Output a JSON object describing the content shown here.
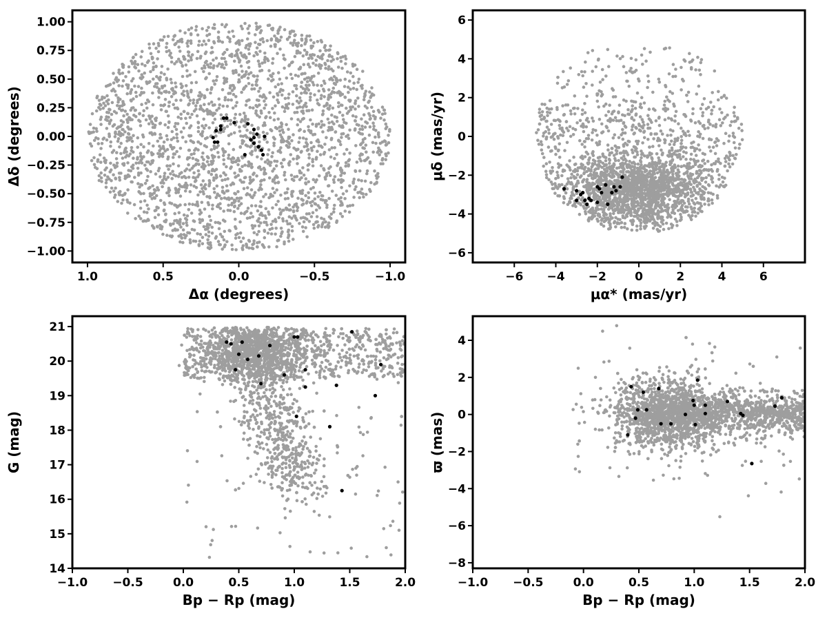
{
  "colors": {
    "field": "#9e9e9e",
    "members": "#000000",
    "axes": "#000000"
  },
  "chart_data": [
    {
      "type": "scatter",
      "xlabel": "Δα (degrees)",
      "ylabel": "Δδ (degrees)",
      "xlim": [
        1.1,
        -1.1
      ],
      "ylim": [
        -1.1,
        1.1
      ],
      "xticks": [
        1.0,
        0.5,
        0.0,
        -0.5,
        -1.0
      ],
      "xtick_labels": [
        "1.0",
        "0.5",
        "0.0",
        "−0.5",
        "−1.0"
      ],
      "yticks": [
        1.0,
        0.75,
        0.5,
        0.25,
        0.0,
        -0.25,
        -0.5,
        -0.75,
        -1.0
      ],
      "ytick_labels": [
        "1.00",
        "0.75",
        "0.50",
        "0.25",
        "0.00",
        "−0.25",
        "−0.50",
        "−0.75",
        "−1.00"
      ],
      "grid": false,
      "series": [
        {
          "role": "field",
          "color": "#9e9e9e",
          "approx_count": 2500,
          "distribution": {
            "shape": "disk",
            "center": [
              0,
              0
            ],
            "radius": 1.0
          }
        },
        {
          "role": "members",
          "color": "#000000",
          "points": [
            [
              0.15,
              0.05
            ],
            [
              0.17,
              -0.01
            ],
            [
              0.16,
              -0.05
            ],
            [
              0.14,
              -0.05
            ],
            [
              0.12,
              0.06
            ],
            [
              0.12,
              0.09
            ],
            [
              0.1,
              0.16
            ],
            [
              0.08,
              0.16
            ],
            [
              0.03,
              0.12
            ],
            [
              -0.06,
              0.11
            ],
            [
              -0.1,
              0.06
            ],
            [
              -0.12,
              0.02
            ],
            [
              -0.1,
              -0.01
            ],
            [
              -0.08,
              -0.03
            ],
            [
              -0.1,
              -0.06
            ],
            [
              -0.13,
              -0.09
            ],
            [
              -0.15,
              -0.12
            ],
            [
              -0.16,
              -0.16
            ],
            [
              -0.17,
              0.0
            ],
            [
              -0.04,
              -0.16
            ]
          ]
        }
      ]
    },
    {
      "type": "scatter",
      "xlabel": "μα* (mas/yr)",
      "ylabel": "μδ (mas/yr)",
      "xlim": [
        -8,
        8
      ],
      "ylim": [
        -6.5,
        6.5
      ],
      "xticks": [
        -6,
        -4,
        -2,
        0,
        2,
        4,
        6
      ],
      "xtick_labels": [
        "−6",
        "−4",
        "−2",
        "0",
        "2",
        "4",
        "6"
      ],
      "yticks": [
        6,
        4,
        2,
        0,
        -2,
        -4,
        -6
      ],
      "ytick_labels": [
        "6",
        "4",
        "2",
        "0",
        "−2",
        "−4",
        "−6"
      ],
      "grid": false,
      "series": [
        {
          "role": "field",
          "color": "#9e9e9e",
          "approx_count": 2500,
          "distribution": {
            "shape": "circle-cut",
            "center": [
              0,
              0
            ],
            "radius": 5.0,
            "ymax": 4.6,
            "ymin": -4.9,
            "dense_center": [
              0,
              -2.8
            ]
          }
        },
        {
          "role": "members",
          "color": "#000000",
          "points": [
            [
              -3.6,
              -2.7
            ],
            [
              -3.0,
              -2.8
            ],
            [
              -3.0,
              -3.3
            ],
            [
              -2.7,
              -2.9
            ],
            [
              -2.6,
              -3.3
            ],
            [
              -2.5,
              -3.5
            ],
            [
              -2.4,
              -3.2
            ],
            [
              -2.3,
              -3.3
            ],
            [
              -2.0,
              -2.6
            ],
            [
              -2.0,
              -3.4
            ],
            [
              -1.9,
              -2.7
            ],
            [
              -1.8,
              -2.9
            ],
            [
              -1.6,
              -2.5
            ],
            [
              -1.5,
              -3.5
            ],
            [
              -1.3,
              -2.9
            ],
            [
              -1.2,
              -2.6
            ],
            [
              -1.1,
              -2.8
            ],
            [
              -0.9,
              -2.6
            ],
            [
              -0.8,
              -2.1
            ],
            [
              -2.8,
              -3.0
            ]
          ]
        }
      ]
    },
    {
      "type": "scatter",
      "xlabel": "Bp − Rp (mag)",
      "ylabel": "G (mag)",
      "xlim": [
        -1.0,
        2.0
      ],
      "ylim": [
        14.0,
        21.3
      ],
      "xticks": [
        -1.0,
        -0.5,
        0.0,
        0.5,
        1.0,
        1.5,
        2.0
      ],
      "xtick_labels": [
        "−1.0",
        "−0.5",
        "0.0",
        "0.5",
        "1.0",
        "1.5",
        "2.0"
      ],
      "yticks": [
        21,
        20,
        19,
        18,
        17,
        16,
        15,
        14
      ],
      "ytick_labels": [
        "21",
        "20",
        "19",
        "18",
        "17",
        "16",
        "15",
        "14"
      ],
      "grid": false,
      "series": [
        {
          "role": "field",
          "color": "#9e9e9e",
          "approx_count": 2500,
          "distribution": {
            "shape": "cmd-wedge",
            "top_band": [
              0.0,
              2.0,
              19.5,
              21.0
            ],
            "dense_center": [
              0.65,
              20.3
            ],
            "tail_to": [
              1.0,
              16.0
            ]
          }
        },
        {
          "role": "members",
          "color": "#000000",
          "points": [
            [
              0.39,
              20.55
            ],
            [
              0.43,
              20.5
            ],
            [
              0.53,
              20.55
            ],
            [
              0.5,
              20.2
            ],
            [
              0.58,
              20.05
            ],
            [
              0.47,
              19.75
            ],
            [
              0.68,
              20.15
            ],
            [
              0.78,
              20.45
            ],
            [
              1.0,
              20.7
            ],
            [
              1.03,
              20.7
            ],
            [
              1.1,
              19.75
            ],
            [
              0.91,
              19.6
            ],
            [
              0.7,
              19.35
            ],
            [
              1.1,
              19.25
            ],
            [
              1.38,
              19.3
            ],
            [
              1.52,
              20.85
            ],
            [
              1.78,
              19.9
            ],
            [
              1.73,
              19.0
            ],
            [
              1.02,
              18.4
            ],
            [
              1.32,
              18.1
            ],
            [
              1.43,
              16.25
            ]
          ]
        }
      ]
    },
    {
      "type": "scatter",
      "xlabel": "Bp − Rp (mag)",
      "ylabel": "ϖ (mas)",
      "xlim": [
        -1.0,
        2.0
      ],
      "ylim": [
        -8.3,
        5.3
      ],
      "xticks": [
        -1.0,
        -0.5,
        0.0,
        0.5,
        1.0,
        1.5,
        2.0
      ],
      "xtick_labels": [
        "−1.0",
        "−0.5",
        "0.0",
        "0.5",
        "1.0",
        "1.5",
        "2.0"
      ],
      "yticks": [
        4,
        2,
        0,
        -2,
        -4,
        -6,
        -8
      ],
      "ytick_labels": [
        "4",
        "2",
        "0",
        "−2",
        "−4",
        "−6",
        "−8"
      ],
      "grid": false,
      "series": [
        {
          "role": "field",
          "color": "#9e9e9e",
          "approx_count": 2500,
          "distribution": {
            "shape": "band",
            "xrange": [
              0.0,
              2.0
            ],
            "center_y": 0.0,
            "dense_center": [
              0.75,
              0.0
            ]
          }
        },
        {
          "role": "members",
          "color": "#000000",
          "points": [
            [
              0.4,
              -1.1
            ],
            [
              0.43,
              1.5
            ],
            [
              0.47,
              -0.2
            ],
            [
              0.49,
              0.25
            ],
            [
              0.54,
              1.2
            ],
            [
              0.57,
              0.25
            ],
            [
              0.68,
              1.4
            ],
            [
              0.7,
              -0.5
            ],
            [
              0.79,
              -0.5
            ],
            [
              0.92,
              0.0
            ],
            [
              0.99,
              0.75
            ],
            [
              1.0,
              0.5
            ],
            [
              1.01,
              -0.55
            ],
            [
              1.03,
              1.85
            ],
            [
              1.1,
              0.05
            ],
            [
              1.1,
              0.5
            ],
            [
              1.3,
              0.7
            ],
            [
              1.42,
              0.05
            ],
            [
              1.44,
              -0.05
            ],
            [
              1.52,
              -2.65
            ],
            [
              1.73,
              0.45
            ],
            [
              1.79,
              0.9
            ]
          ]
        }
      ]
    }
  ]
}
